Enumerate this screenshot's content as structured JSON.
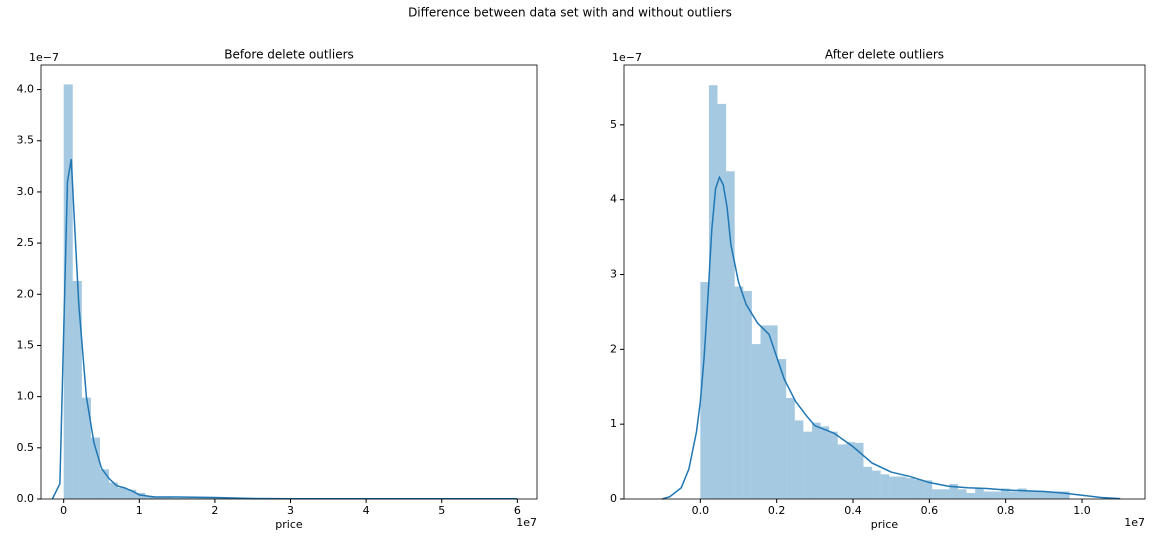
{
  "title": "Difference between data set with and without outliers",
  "chart_data": [
    {
      "type": "histogram",
      "title": "Before delete outliers",
      "x_label": "price",
      "x_offset": "1e7",
      "y_offset": "1e−7",
      "color": "#1f77b4",
      "bins": [
        0,
        0.12,
        0.24,
        0.36,
        0.48,
        0.6,
        0.72,
        0.84,
        0.96,
        1.08,
        1.2,
        1.32,
        1.44,
        1.56,
        1.68,
        1.8,
        1.92,
        2.04,
        2.16,
        2.28,
        2.4,
        2.52,
        2.64,
        2.76,
        2.88,
        3,
        3.12,
        3.24,
        3.36,
        3.48,
        3.6,
        3.72,
        3.84,
        3.96,
        4.08,
        4.2,
        4.32,
        4.44,
        4.56,
        4.68,
        4.8,
        4.92,
        5.04,
        5.16,
        5.28,
        5.4,
        5.52,
        5.64,
        5.76,
        5.88,
        6
      ],
      "values": [
        4.05,
        2.13,
        0.99,
        0.6,
        0.29,
        0.16,
        0.11,
        0.09,
        0.06,
        0.03,
        0.02,
        0.02,
        0.01,
        0.01,
        0.02,
        0.01,
        0.01,
        0.01,
        0.01,
        0.01,
        0.01,
        0.005,
        0.005,
        0.003,
        0.003,
        0.003,
        0.003,
        0.002,
        0.002,
        0.002,
        0.002,
        0.002,
        0.002,
        0.002,
        0.002,
        0.002,
        0.002,
        0.002,
        0.002,
        0.002,
        0.001,
        0.001,
        0.001,
        0.001,
        0.001,
        0.001,
        0.001,
        0.001,
        0.001,
        0.001
      ],
      "kde_x": [
        -0.15,
        -0.05,
        0.05,
        0.1,
        0.15,
        0.2,
        0.3,
        0.4,
        0.5,
        0.6,
        0.7,
        0.8,
        0.9,
        1,
        1.2,
        1.5,
        2,
        2.5,
        3,
        4,
        5,
        6
      ],
      "kde_y": [
        0,
        0.15,
        3.1,
        3.32,
        2.6,
        1.9,
        1.0,
        0.55,
        0.3,
        0.2,
        0.13,
        0.11,
        0.08,
        0.04,
        0.02,
        0.02,
        0.015,
        0.005,
        0.003,
        0.002,
        0.002,
        0.002
      ],
      "xlim": [
        -0.3,
        6.26
      ],
      "ylim": [
        0,
        4.24
      ],
      "xticks": [
        0,
        1,
        2,
        3,
        4,
        5,
        6
      ],
      "yticks": [
        {
          "value": 0,
          "label": "0.0"
        },
        0.5,
        {
          "value": 1,
          "label": "1.0"
        },
        1.5,
        {
          "value": 2,
          "label": "2.0"
        },
        2.5,
        {
          "value": 3,
          "label": "3.0"
        },
        3.5,
        {
          "value": 4,
          "label": "4.0"
        }
      ]
    },
    {
      "type": "histogram",
      "title": "After delete outliers",
      "x_label": "price",
      "x_offset": "1e7",
      "y_offset": "1e−7",
      "color": "#1f77b4",
      "bins": [
        0,
        0.0225,
        0.045,
        0.0675,
        0.09,
        0.1125,
        0.135,
        0.1575,
        0.18,
        0.2025,
        0.225,
        0.2475,
        0.27,
        0.2925,
        0.315,
        0.3375,
        0.36,
        0.3825,
        0.405,
        0.4275,
        0.45,
        0.4725,
        0.495,
        0.5175,
        0.54,
        0.5625,
        0.585,
        0.6075,
        0.63,
        0.6525,
        0.675,
        0.6975,
        0.72,
        0.7425,
        0.765,
        0.7875,
        0.81,
        0.8325,
        0.855,
        0.8775,
        0.9,
        0.9225,
        0.945,
        0.9675
      ],
      "values": [
        2.9,
        5.53,
        5.28,
        4.38,
        2.84,
        2.78,
        2.07,
        2.32,
        2.32,
        1.87,
        1.35,
        1.05,
        0.9,
        1.02,
        0.97,
        0.9,
        0.73,
        0.76,
        0.75,
        0.43,
        0.38,
        0.33,
        0.3,
        0.3,
        0.28,
        0.26,
        0.25,
        0.13,
        0.13,
        0.2,
        0.13,
        0.08,
        0.14,
        0.1,
        0.1,
        0.14,
        0.1,
        0.14,
        0.11,
        0.11,
        0.1,
        0.1,
        0.1
      ],
      "kde_x": [
        -0.1,
        -0.08,
        -0.05,
        -0.03,
        -0.01,
        0,
        0.01,
        0.02,
        0.03,
        0.04,
        0.05,
        0.06,
        0.07,
        0.08,
        0.1,
        0.12,
        0.15,
        0.18,
        0.2,
        0.22,
        0.25,
        0.28,
        0.3,
        0.35,
        0.4,
        0.45,
        0.5,
        0.55,
        0.6,
        0.65,
        0.7,
        0.75,
        0.8,
        0.85,
        0.9,
        0.95,
        1,
        1.05,
        1.1
      ],
      "kde_y": [
        0,
        0.03,
        0.15,
        0.4,
        0.9,
        1.3,
        1.9,
        2.7,
        3.6,
        4.15,
        4.3,
        4.2,
        3.9,
        3.4,
        2.9,
        2.6,
        2.35,
        2.2,
        1.9,
        1.6,
        1.3,
        1.1,
        0.98,
        0.88,
        0.7,
        0.48,
        0.36,
        0.3,
        0.22,
        0.17,
        0.15,
        0.14,
        0.12,
        0.11,
        0.1,
        0.08,
        0.05,
        0.02,
        0.005
      ],
      "xlim": [
        -0.2,
        1.165
      ],
      "ylim": [
        0,
        5.8
      ],
      "xticks": [
        {
          "value": 0,
          "label": "0.0"
        },
        0.2,
        0.4,
        0.6,
        0.8,
        {
          "value": 1,
          "label": "1.0"
        }
      ],
      "yticks": [
        0,
        1,
        2,
        3,
        4,
        5
      ]
    }
  ]
}
